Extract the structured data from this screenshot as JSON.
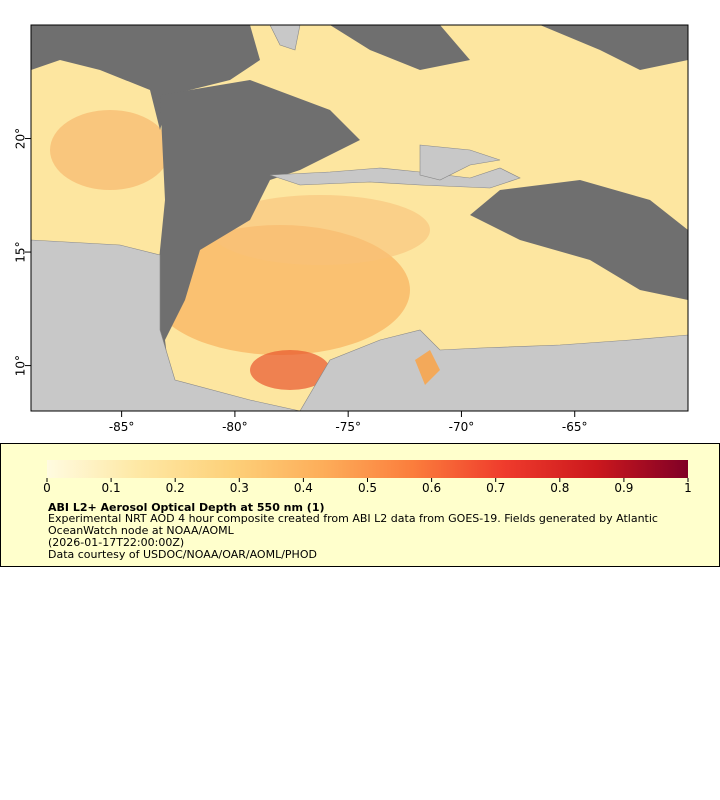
{
  "chart_data": {
    "type": "map",
    "xlim": [
      -89,
      -60
    ],
    "ylim": [
      8,
      25
    ],
    "xticks": [
      {
        "value": -85,
        "label": "-85°"
      },
      {
        "value": -80,
        "label": "-80°"
      },
      {
        "value": -75,
        "label": "-75°"
      },
      {
        "value": -70,
        "label": "-70°"
      },
      {
        "value": -65,
        "label": "-65°"
      }
    ],
    "yticks": [
      {
        "value": 10,
        "label": "10°"
      },
      {
        "value": 15,
        "label": "15°"
      },
      {
        "value": 20,
        "label": "20°"
      }
    ],
    "colorbar": {
      "clim": [
        0,
        1
      ],
      "ticks": [
        0,
        0.1,
        0.2,
        0.3,
        0.4,
        0.5,
        0.6,
        0.7,
        0.8,
        0.9,
        1
      ],
      "colors": [
        "#fffbe0",
        "#fee8a4",
        "#fdd17a",
        "#fdae5a",
        "#fb7d3c",
        "#ef3b2c",
        "#cb181d",
        "#800026"
      ]
    },
    "title": "ABI L2+ Aerosol Optical Depth at 550 nm (1)",
    "description": "Experimental NRT AOD 4 hour composite created from ABI L2 data from GOES-19. Fields generated by Atlantic OceanWatch node at NOAA/AOML",
    "time": "(2026-01-17T22:00:00Z)",
    "credit": "Data courtesy of USDOC/NOAA/OAR/AOML/PHOD"
  }
}
